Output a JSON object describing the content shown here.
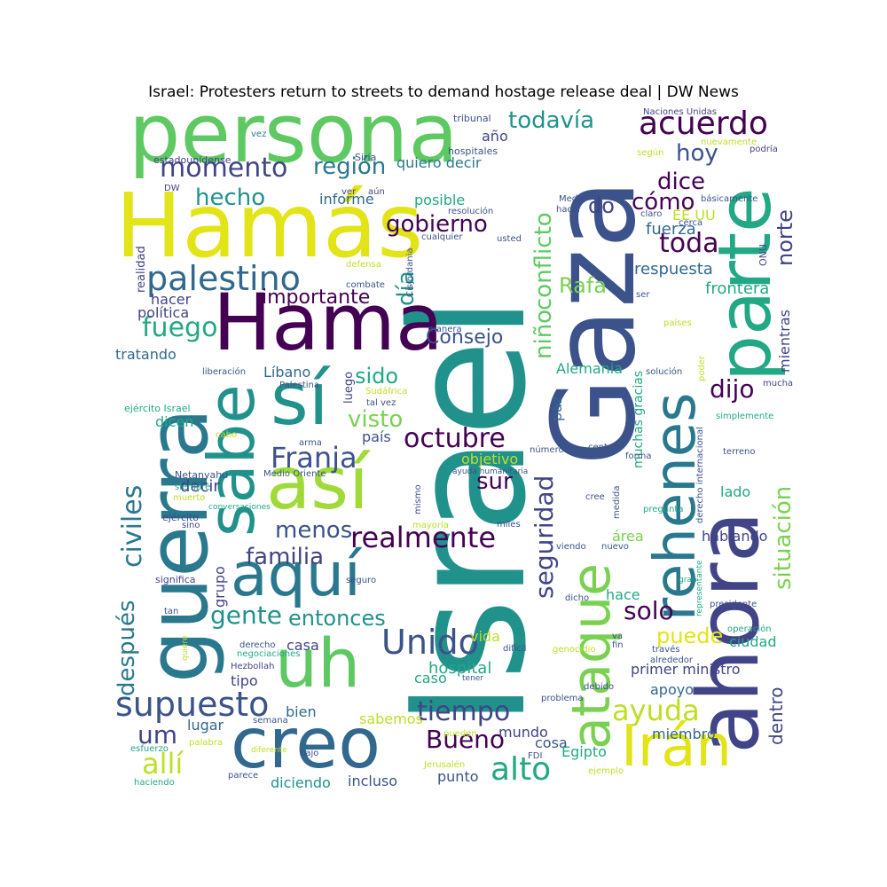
{
  "title": "Israel: Protesters return to streets to demand hostage release deal | DW News",
  "palette": {
    "dark_purple": "#440154",
    "indigo": "#414487",
    "blue": "#2a788e",
    "teal": "#21918c",
    "green": "#22a884",
    "light_green": "#7ad151",
    "yellow": "#e2e418"
  },
  "words": {
    "israel": "Israel",
    "gaza": "Gaza",
    "hamas": "Hamás",
    "persona": "persona",
    "ahora": "ahora",
    "guerra": "guerra",
    "hama": "Hama",
    "creo": "creo",
    "parte": "parte",
    "si": "sí",
    "sabe": "sabe",
    "asi": "así",
    "aqui": "aquí",
    "uh": "uh",
    "ataque": "ataque",
    "rehenes": "rehenes",
    "iran": "Irán",
    "acuerdo": "acuerdo",
    "momento": "momento",
    "todavia": "todavía",
    "region": "región",
    "hecho": "hecho",
    "hoy": "hoy",
    "dice": "dice",
    "como": "cómo",
    "gobierno": "gobierno",
    "conflicto": "conflicto",
    "nino": "niño",
    "palestino": "palestino",
    "toda": "toda",
    "norte": "norte",
    "rafa": "Rafa",
    "importante": "importante",
    "dia": "día",
    "fuego": "fuego",
    "consejo": "Consejo",
    "dijo": "dijo",
    "sido": "sido",
    "visto": "visto",
    "octubre": "octubre",
    "franja": "Franja",
    "sur": "sur",
    "realmente": "realmente",
    "seguridad": "seguridad",
    "situacion": "situación",
    "civiles": "civiles",
    "despues": "después",
    "familia": "familia",
    "gente": "gente",
    "entonces": "entonces",
    "unido": "Unido",
    "solo": "solo",
    "puede": "puede",
    "supuesto": "supuesto",
    "tiempo": "tiempo",
    "ayuda": "ayuda",
    "um": "um",
    "alli": "allí",
    "bueno": "Bueno",
    "alto": "alto",
    "menos": "menos",
    "do": "do",
    "fuerza": "fuerza",
    "respuesta": "respuesta",
    "frontera": "frontera",
    "politica": "política",
    "hacer": "hacer",
    "tratando": "tratando",
    "libano": "Líbano",
    "alemania": "Alemania",
    "paz": "paz",
    "decir": "decir",
    "pais": "país",
    "objetivo": "objetivo",
    "hospital": "hospital",
    "vida": "vida",
    "caso": "caso",
    "casa": "casa",
    "tipo": "tipo",
    "bien": "bien",
    "lugar": "lugar",
    "mundo": "mundo",
    "cosa": "cosa",
    "egipto": "Egipto",
    "punto": "punto",
    "incluso": "incluso",
    "diciendo": "diciendo",
    "sabemos": "sabemos",
    "dentro": "dentro",
    "apoyo": "apoyo",
    "miembro": "miembro",
    "ciudad": "ciudad",
    "primer_ministro": "primer ministro",
    "hablando": "hablando",
    "lado": "lado",
    "hace": "hace",
    "area": "área",
    "grupo": "grupo",
    "dicen": "dicen",
    "mientras": "mientras",
    "ee_uu": "EE UU",
    "quiero_decir": "quiero decir",
    "posible": "posible",
    "informe": "informe",
    "ano": "año",
    "muchas_gracias": "muchas gracias",
    "realidad": "realidad",
    "luego": "luego",
    "sino": "sino",
    "ejercito": "ejército",
    "significa": "significa",
    "tan": "tan",
    "derecho": "derecho",
    "hezbollah": "Hezbollah",
    "dificil": "difícil",
    "tribunal": "tribunal",
    "naciones_unidas": "Naciones Unidas",
    "estadounidense": "estadounidense",
    "siria": "Siria",
    "hospitales": "hospitales",
    "vez": "vez",
    "dw": "DW",
    "aun": "aún",
    "ver": "ver",
    "resolucion": "resolución",
    "cualquier": "cualquier",
    "usted": "usted",
    "defensa": "defensa",
    "combate": "combate",
    "cisjordania": "Cisjordania",
    "medio": "Medio",
    "hacia": "hacia",
    "claro": "claro",
    "cerca": "cerca",
    "basicamente": "básicamente",
    "nuevamente": "nuevamente",
    "segun": "según",
    "podria": "podría",
    "onu": "ONU",
    "ser": "ser",
    "paises": "países",
    "solucion": "solución",
    "poder": "poder",
    "mucha": "mucha",
    "simplemente": "simplemente",
    "manera": "manera",
    "liberacion": "liberación",
    "palestina": "Palestina",
    "sudafrica": "Sudáfrica",
    "tal_vez": "tal vez",
    "ejercito_israel": "ejército Israel",
    "cabo": "cabo",
    "arma": "arma",
    "numero": "número",
    "centro": "centro",
    "netanyahu": "Netanyahu",
    "medio_oriente": "Medio Oriente",
    "siempre": "siempre",
    "muerto": "muerto",
    "conversaciones": "conversaciones",
    "ayuda_humanitaria": "ayuda humanitaria",
    "mismo": "mismo",
    "mayoria": "mayoría",
    "miles": "miles",
    "viendo": "viendo",
    "nuevo": "nuevo",
    "cree": "cree",
    "medida": "medida",
    "forma": "forma",
    "pregunta": "pregunta",
    "derecho_internacional": "derecho internacional",
    "terreno": "terreno",
    "gran": "gran",
    "seguro": "seguro",
    "dicho": "dicho",
    "representante": "representante",
    "presidente": "presidente",
    "operacion": "operación",
    "traves": "través",
    "alrededor": "alrededor",
    "fin": "fin",
    "va": "va",
    "genocidio": "genocidio",
    "quiere": "quiere",
    "negociaciones": "negociaciones",
    "tener": "tener",
    "debido": "debido",
    "problema": "problema",
    "semana": "semana",
    "palabra": "palabra",
    "esfuerzo": "esfuerzo",
    "diferente": "diferente",
    "bajo": "bajo",
    "pueden": "pueden",
    "fdi": "FDI",
    "jerusalen": "Jerusalén",
    "haciendo": "haciendo",
    "parece": "parece",
    "ejemplo": "ejemplo"
  }
}
